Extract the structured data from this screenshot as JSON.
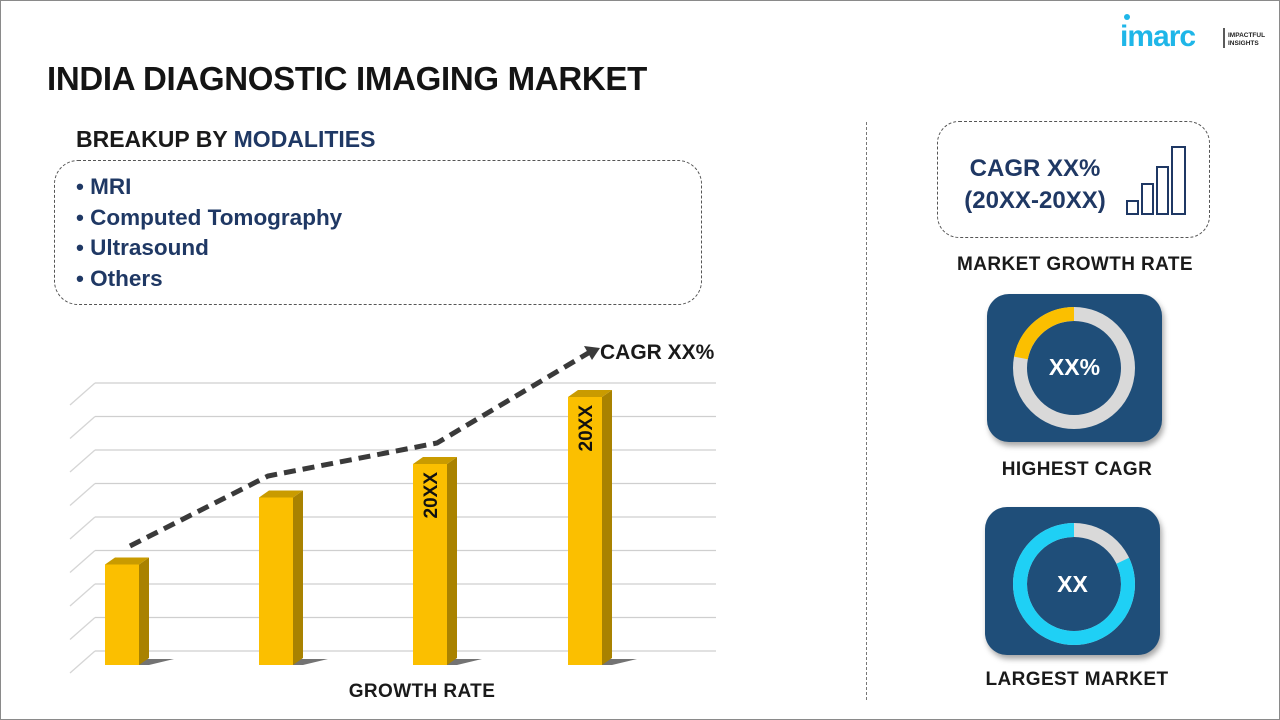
{
  "logo": {
    "brand": "imarc",
    "tagline_1": "IMPACTFUL",
    "tagline_2": "INSIGHTS",
    "color": "#1fb6e8"
  },
  "title": "INDIA DIAGNOSTIC IMAGING MARKET",
  "breakup": {
    "prefix": "BREAKUP BY",
    "highlight": "MODALITIES",
    "items": [
      "• MRI",
      "• Computed  Tomography",
      "• Ultrasound",
      "• Others"
    ]
  },
  "growth_chart": {
    "bar_levels": [
      0.3,
      0.5,
      0.6,
      0.8
    ],
    "bar_labels": [
      "",
      "",
      "20XX",
      "20XX"
    ],
    "trend_label": "CAGR XX%",
    "xlabel": "GROWTH RATE",
    "bar_color": "#fbbf00",
    "bar_side_color": "#a98200"
  },
  "market_growth": {
    "line1": "CAGR XX%",
    "line2": "(20XX-20XX)",
    "label": "MARKET  GROWTH  RATE"
  },
  "highest_cagr": {
    "value": "XX%",
    "label": "HIGHEST CAGR",
    "fill_fraction": 0.22,
    "fill_color": "#fbbf00"
  },
  "largest_market": {
    "value": "XX",
    "label": "LARGEST MARKET",
    "fill_fraction": 0.82,
    "fill_color": "#1fd0f5"
  },
  "colors": {
    "navy": "#1f3864",
    "card": "#1f4e79",
    "ring_gray": "#d9d9d9"
  }
}
